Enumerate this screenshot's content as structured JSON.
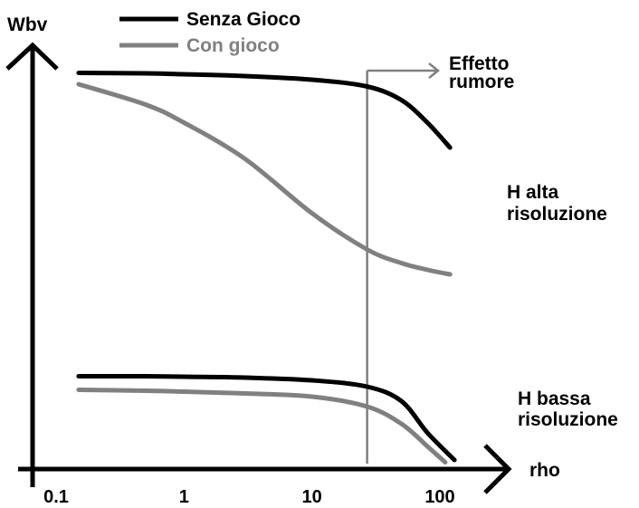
{
  "chart_data": {
    "type": "line",
    "ylabel": "Wbv",
    "xlabel": "rho",
    "x_scale": "log",
    "xlim": [
      0.1,
      100
    ],
    "x_ticks": [
      "0.1",
      "1",
      "10",
      "100"
    ],
    "legend": {
      "placement": "top-left",
      "entries": [
        {
          "label": "Senza Gioco",
          "color": "#000000"
        },
        {
          "label": "Con gioco",
          "color": "#808080"
        }
      ]
    },
    "annotations": {
      "noise_line_x": 27,
      "noise_label": [
        "Effetto",
        "rumore"
      ],
      "high_res_label": [
        "H alta",
        "risoluzione"
      ],
      "low_res_label": [
        "H bassa",
        "risoluzione"
      ]
    },
    "groups": [
      {
        "name": "H alta risoluzione",
        "series": [
          {
            "legend": "Senza Gioco",
            "color": "#000000",
            "x": [
              0.15,
              0.5,
              1,
              3,
              10,
              27,
              50,
              80,
              120
            ],
            "y": [
              0.875,
              0.874,
              0.872,
              0.868,
              0.86,
              0.845,
              0.815,
              0.765,
              0.71
            ]
          },
          {
            "legend": "Con gioco",
            "color": "#808080",
            "x": [
              0.15,
              0.5,
              1,
              3,
              10,
              27,
              50,
              80,
              120
            ],
            "y": [
              0.85,
              0.805,
              0.765,
              0.685,
              0.565,
              0.485,
              0.455,
              0.44,
              0.43
            ]
          }
        ]
      },
      {
        "name": "H bassa risoluzione",
        "series": [
          {
            "legend": "Senza Gioco",
            "color": "#000000",
            "x": [
              0.15,
              0.5,
              1,
              3,
              10,
              27,
              50,
              80,
              130
            ],
            "y": [
              0.205,
              0.205,
              0.204,
              0.202,
              0.196,
              0.182,
              0.15,
              0.08,
              0.02
            ]
          },
          {
            "legend": "Con gioco",
            "color": "#808080",
            "x": [
              0.15,
              0.5,
              1,
              3,
              10,
              27,
              50,
              80,
              110
            ],
            "y": [
              0.175,
              0.173,
              0.171,
              0.167,
              0.16,
              0.138,
              0.1,
              0.05,
              0.015
            ]
          }
        ]
      }
    ]
  }
}
